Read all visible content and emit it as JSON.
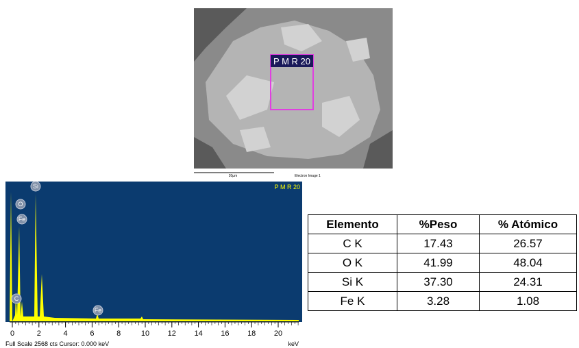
{
  "sem_image": {
    "label": "P M R 20",
    "scale_bar": "20µm",
    "caption": "Electron Image 1"
  },
  "spectrum": {
    "label": "P M R 20",
    "peak_labels": [
      "Si",
      "O",
      "Fe",
      "C",
      "Fe"
    ],
    "xticks": [
      0,
      2,
      4,
      6,
      8,
      10,
      12,
      14,
      16,
      18,
      20
    ],
    "xlabel": "keV",
    "footer": "Full Scale 2568 cts  Cursor: 0.000 keV"
  },
  "table": {
    "header": [
      "Elemento",
      "%Peso",
      "% Atómico"
    ],
    "rows": [
      [
        "C K",
        "17.43",
        "26.57"
      ],
      [
        "O K",
        "41.99",
        "48.04"
      ],
      [
        "Si K",
        "37.30",
        "24.31"
      ],
      [
        "Fe K",
        "3.28",
        "1.08"
      ]
    ]
  }
}
